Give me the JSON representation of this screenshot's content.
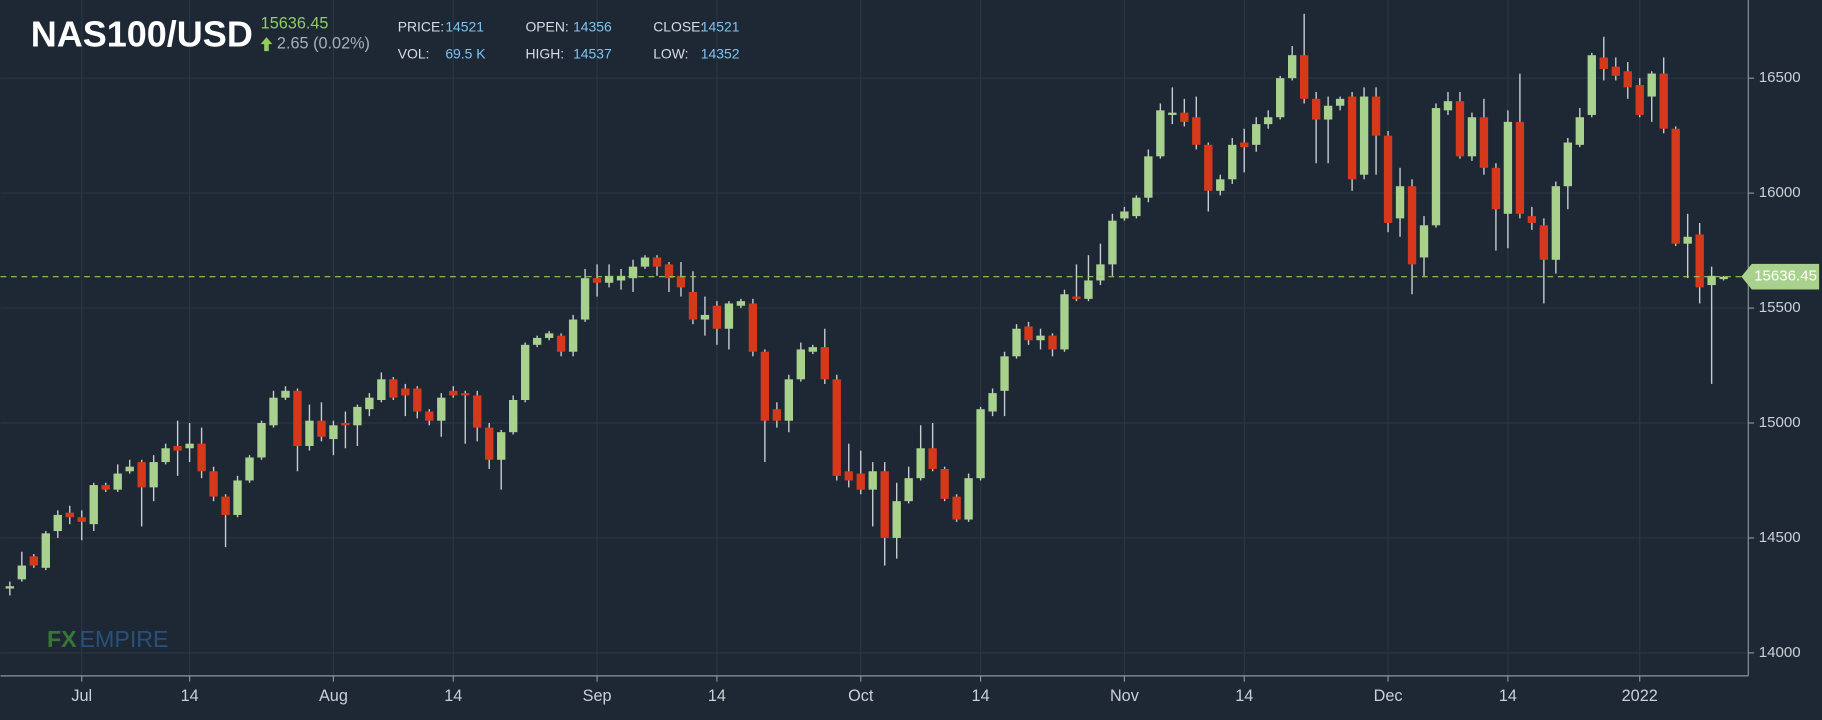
{
  "header": {
    "symbol": "NAS100/USD",
    "price": "15636.45",
    "change": "2.65 (0.02%)",
    "stats": [
      {
        "label": "PRICE:",
        "value": "14521"
      },
      {
        "label": "OPEN:",
        "value": "14356"
      },
      {
        "label": "CLOSE:",
        "value": "14521"
      },
      {
        "label": "VOL:",
        "value": "69.5 K"
      },
      {
        "label": "HIGH:",
        "value": "14537"
      },
      {
        "label": "LOW:",
        "value": "14352"
      }
    ]
  },
  "watermark": {
    "left": "FX",
    "right": "EMPIRE"
  },
  "chart_data": {
    "type": "candlestick",
    "categories": [
      null,
      null,
      null,
      null,
      null,
      null,
      "Jul",
      null,
      null,
      null,
      null,
      null,
      null,
      null,
      null,
      "14",
      null,
      null,
      null,
      null,
      null,
      null,
      null,
      null,
      null,
      null,
      null,
      "Aug",
      null,
      null,
      null,
      null,
      null,
      null,
      null,
      null,
      null,
      "14",
      null,
      null,
      null,
      null,
      null,
      null,
      null,
      null,
      null,
      null,
      null,
      "Sep",
      null,
      null,
      null,
      null,
      null,
      null,
      null,
      null,
      null,
      "14",
      null,
      null,
      null,
      null,
      null,
      null,
      null,
      null,
      null,
      null,
      null,
      "Oct",
      null,
      null,
      null,
      null,
      null,
      null,
      null,
      null,
      null,
      "14",
      null,
      null,
      null,
      null,
      null,
      null,
      null,
      null,
      null,
      null,
      null,
      "Nov",
      null,
      null,
      null,
      null,
      null,
      null,
      null,
      null,
      null,
      "14",
      null,
      null,
      null,
      null,
      null,
      null,
      null,
      null,
      null,
      null,
      null,
      "Dec",
      null,
      null,
      null,
      null,
      null,
      null,
      null,
      null,
      null,
      "14",
      null,
      null,
      null,
      null,
      null,
      null,
      null,
      null,
      null,
      null,
      "2022",
      null,
      null,
      null,
      null,
      null,
      null,
      null
    ],
    "open": [
      14280,
      14320,
      14420,
      14370,
      14530,
      14610,
      14590,
      14560,
      14730,
      14710,
      14790,
      14830,
      14720,
      14830,
      14900,
      14890,
      14910,
      14790,
      14680,
      14600,
      14750,
      14850,
      14990,
      15110,
      15140,
      14900,
      15010,
      14930,
      15000,
      14990,
      15060,
      15100,
      15190,
      15150,
      15150,
      15050,
      15010,
      15140,
      15130,
      15120,
      14980,
      14840,
      14960,
      15100,
      15340,
      15370,
      15380,
      15310,
      15450,
      15630,
      15610,
      15620,
      15630,
      15680,
      15720,
      15690,
      15640,
      15570,
      15450,
      15510,
      15410,
      15510,
      15520,
      15310,
      15060,
      15010,
      15190,
      15310,
      15330,
      15190,
      14790,
      14780,
      14710,
      14790,
      14500,
      14660,
      14760,
      14890,
      14800,
      14680,
      14580,
      14760,
      15050,
      15140,
      15290,
      15420,
      15360,
      15380,
      15320,
      15550,
      15540,
      15620,
      15690,
      15890,
      15900,
      15980,
      16160,
      16340,
      16350,
      16330,
      16210,
      16010,
      16060,
      16220,
      16210,
      16300,
      16330,
      16500,
      16600,
      16410,
      16320,
      16380,
      16420,
      16080,
      16420,
      16250,
      15890,
      16030,
      15720,
      15860,
      16360,
      16400,
      16160,
      16330,
      16110,
      15910,
      16310,
      15900,
      15860,
      15710,
      16030,
      16210,
      16340,
      16590,
      16550,
      16530,
      16470,
      16420,
      16520,
      16280,
      15780,
      15820,
      15600,
      15630
    ],
    "high": [
      14310,
      14440,
      14430,
      14530,
      14620,
      14640,
      14620,
      14740,
      14740,
      14820,
      14840,
      14840,
      14860,
      14910,
      15010,
      15000,
      14980,
      14810,
      14690,
      14770,
      14860,
      15010,
      15140,
      15160,
      15150,
      15080,
      15090,
      15010,
      15050,
      15080,
      15130,
      15220,
      15200,
      15170,
      15160,
      15060,
      15130,
      15160,
      15140,
      15140,
      15000,
      14970,
      15120,
      15350,
      15380,
      15400,
      15390,
      15470,
      15670,
      15690,
      15690,
      15670,
      15710,
      15730,
      15730,
      15700,
      15700,
      15660,
      15550,
      15530,
      15530,
      15540,
      15540,
      15320,
      15090,
      15210,
      15350,
      15340,
      15410,
      15210,
      14910,
      14880,
      14830,
      14830,
      14740,
      14810,
      14990,
      15000,
      14810,
      14690,
      14780,
      15070,
      15150,
      15310,
      15430,
      15440,
      15410,
      15390,
      15580,
      15690,
      15730,
      15780,
      15910,
      15940,
      15990,
      16190,
      16390,
      16460,
      16410,
      16420,
      16220,
      16080,
      16240,
      16280,
      16330,
      16360,
      16510,
      16640,
      16780,
      16440,
      16420,
      16420,
      16440,
      16460,
      16460,
      16270,
      16110,
      16060,
      15900,
      16390,
      16440,
      16440,
      16350,
      16410,
      16130,
      16360,
      16520,
      15940,
      15890,
      16050,
      16240,
      16370,
      16610,
      16680,
      16590,
      16570,
      16500,
      16530,
      16590,
      16290,
      15910,
      15870,
      15680,
      15640
    ],
    "low": [
      14250,
      14310,
      14370,
      14360,
      14500,
      14560,
      14490,
      14530,
      14700,
      14700,
      14780,
      14550,
      14660,
      14820,
      14770,
      14830,
      14760,
      14660,
      14460,
      14590,
      14740,
      14840,
      14980,
      15100,
      14790,
      14880,
      14920,
      14860,
      14890,
      14900,
      15030,
      15090,
      15100,
      15030,
      15020,
      14990,
      14940,
      15110,
      14910,
      14920,
      14800,
      14710,
      14950,
      15090,
      15330,
      15360,
      15290,
      15290,
      15440,
      15550,
      15590,
      15580,
      15570,
      15670,
      15640,
      15570,
      15550,
      15430,
      15380,
      15340,
      15320,
      15500,
      15290,
      14830,
      14980,
      14960,
      15180,
      15300,
      15170,
      14750,
      14720,
      14690,
      14550,
      14380,
      14410,
      14650,
      14750,
      14790,
      14660,
      14570,
      14570,
      14750,
      15030,
      15030,
      15280,
      15340,
      15320,
      15290,
      15310,
      15530,
      15530,
      15600,
      15640,
      15880,
      15890,
      15960,
      16150,
      16300,
      16290,
      16190,
      15920,
      15990,
      16040,
      16090,
      16180,
      16280,
      16320,
      16490,
      16390,
      16130,
      16130,
      16360,
      16010,
      16060,
      16080,
      15830,
      15810,
      15560,
      15640,
      15850,
      16340,
      16150,
      16140,
      16080,
      15750,
      15760,
      15890,
      15840,
      15520,
      15650,
      15930,
      16200,
      16330,
      16490,
      16490,
      16410,
      16330,
      16310,
      16260,
      15770,
      15630,
      15520,
      15170,
      15620
    ],
    "close": [
      14290,
      14380,
      14380,
      14520,
      14600,
      14590,
      14570,
      14730,
      14710,
      14780,
      14810,
      14720,
      14830,
      14890,
      14880,
      14910,
      14790,
      14680,
      14600,
      14750,
      14850,
      15000,
      15110,
      15140,
      14900,
      15010,
      14940,
      14990,
      14990,
      15070,
      15110,
      15190,
      15110,
      15120,
      15050,
      15010,
      15110,
      15120,
      15120,
      14980,
      14840,
      14960,
      15100,
      15340,
      15370,
      15390,
      15310,
      15450,
      15630,
      15610,
      15640,
      15640,
      15680,
      15720,
      15680,
      15630,
      15590,
      15450,
      15470,
      15410,
      15520,
      15530,
      15310,
      15010,
      15010,
      15190,
      15320,
      15330,
      15190,
      14770,
      14750,
      14710,
      14790,
      14500,
      14660,
      14760,
      14890,
      14800,
      14670,
      14580,
      14760,
      15060,
      15130,
      15290,
      15410,
      15360,
      15380,
      15320,
      15560,
      15540,
      15620,
      15690,
      15880,
      15920,
      15980,
      16160,
      16360,
      16350,
      16310,
      16210,
      16010,
      16060,
      16210,
      16200,
      16300,
      16330,
      16500,
      16600,
      16410,
      16320,
      16380,
      16410,
      16060,
      16420,
      16250,
      15870,
      16030,
      15690,
      15860,
      16370,
      16400,
      16160,
      16330,
      16110,
      15930,
      16310,
      15910,
      15870,
      15710,
      16030,
      16220,
      16330,
      16600,
      16540,
      16510,
      16460,
      16340,
      16520,
      16280,
      15780,
      15810,
      15590,
      15640,
      15636
    ],
    "up_color": "#a9d18e",
    "down_color": "#d6381b",
    "last_price": 15636.45,
    "ylim": [
      13900,
      16840
    ],
    "yticks": [
      14000,
      14500,
      15000,
      15500,
      16000,
      16500
    ],
    "grid": true
  }
}
